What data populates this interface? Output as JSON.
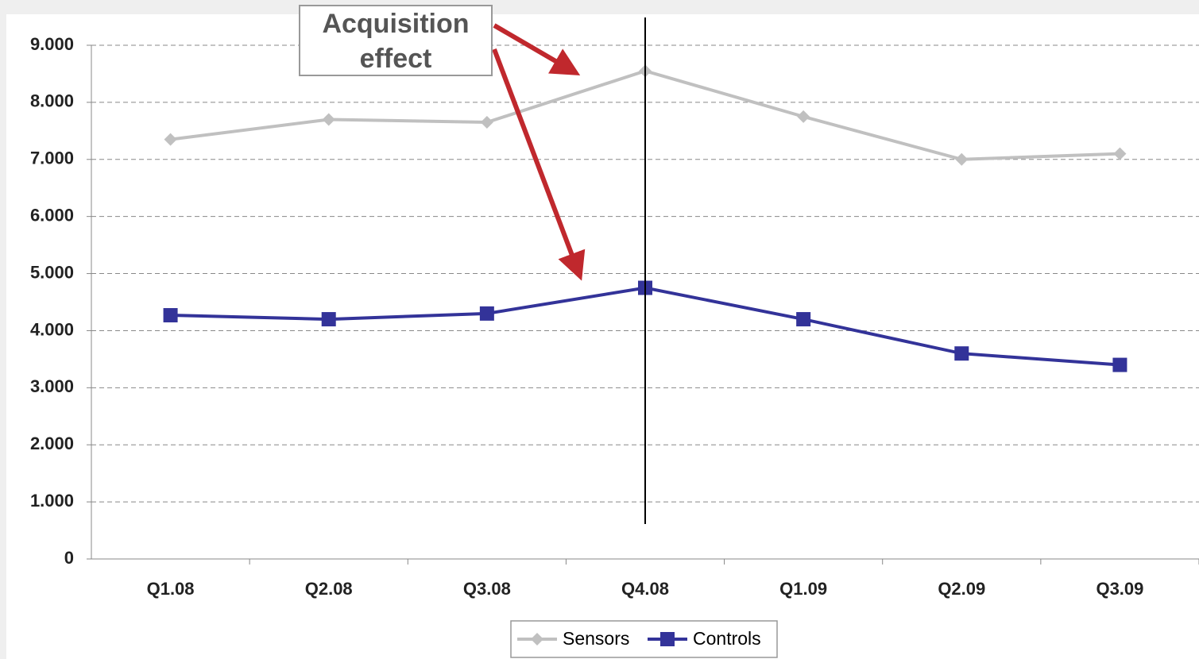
{
  "chart_data": {
    "type": "line",
    "annotation": "Acquisition effect",
    "categories": [
      "Q1.08",
      "Q2.08",
      "Q3.08",
      "Q4.08",
      "Q1.09",
      "Q2.09",
      "Q3.09"
    ],
    "series": [
      {
        "name": "Sensors",
        "color": "#c0c0c0",
        "marker": "diamond",
        "values": [
          7350,
          7700,
          7650,
          8550,
          7750,
          7000,
          7100
        ]
      },
      {
        "name": "Controls",
        "color": "#333399",
        "marker": "square",
        "values": [
          4270,
          4200,
          4300,
          4750,
          4200,
          3600,
          3400
        ]
      }
    ],
    "ylim": [
      0,
      9000
    ],
    "yticks": [
      0,
      {
        "value": 1000,
        "label": "1.000"
      },
      {
        "value": 2000,
        "label": "2.000"
      },
      {
        "value": 3000,
        "label": "3.000"
      },
      {
        "value": 4000,
        "label": "4.000"
      },
      {
        "value": 5000,
        "label": "5.000"
      },
      {
        "value": 6000,
        "label": "6.000"
      },
      {
        "value": 7000,
        "label": "7.000"
      },
      {
        "value": 8000,
        "label": "8.000"
      },
      {
        "value": 9000,
        "label": "9.000"
      }
    ],
    "grid": true,
    "legend": "bottom"
  }
}
